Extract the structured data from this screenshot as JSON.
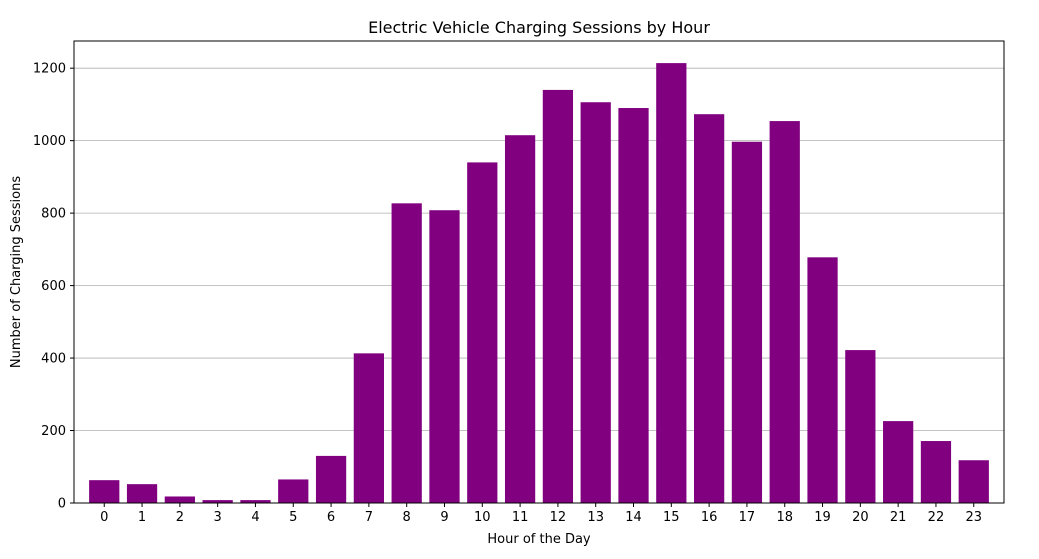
{
  "chart_data": {
    "type": "bar",
    "title": "Electric Vehicle Charging Sessions by Hour",
    "xlabel": "Hour of the Day",
    "ylabel": "Number of Charging Sessions",
    "categories": [
      "0",
      "1",
      "2",
      "3",
      "4",
      "5",
      "6",
      "7",
      "8",
      "9",
      "10",
      "11",
      "12",
      "13",
      "14",
      "15",
      "16",
      "17",
      "18",
      "19",
      "20",
      "21",
      "22",
      "23"
    ],
    "values": [
      63,
      52,
      18,
      8,
      8,
      65,
      130,
      413,
      827,
      808,
      940,
      1015,
      1140,
      1106,
      1090,
      1214,
      1073,
      997,
      1054,
      678,
      422,
      226,
      171,
      118
    ],
    "ylim": [
      0,
      1275
    ],
    "yticks": [
      0,
      200,
      400,
      600,
      800,
      1000,
      1200
    ],
    "grid": "y",
    "bar_color": "#800080",
    "legend": "none"
  }
}
